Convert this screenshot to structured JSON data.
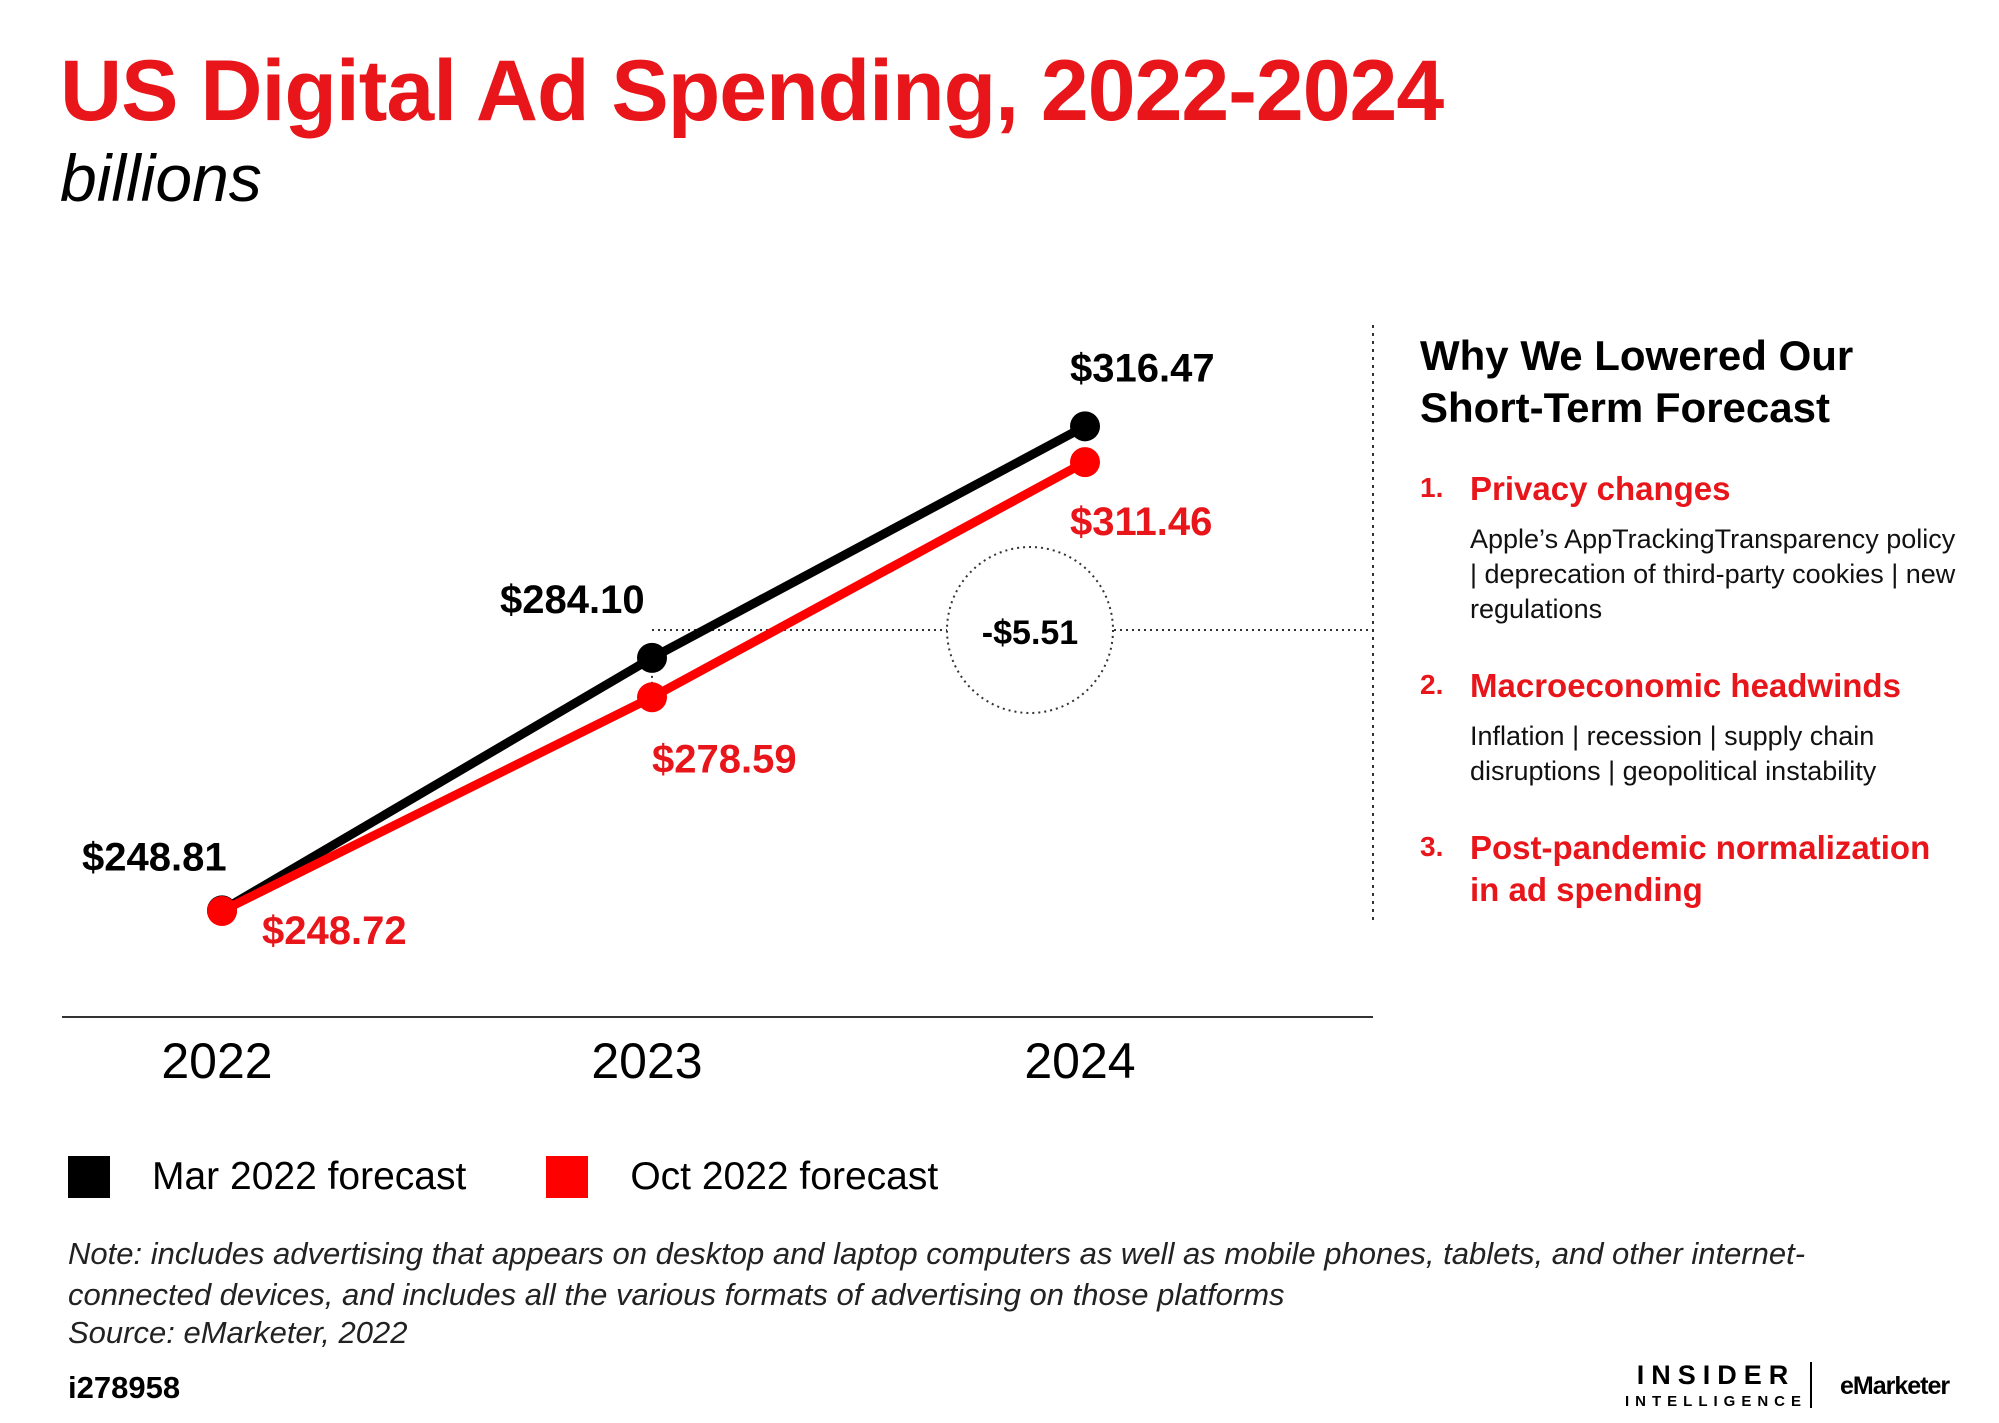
{
  "title": "US Digital Ad Spending, 2022-2024",
  "subtitle": "billions",
  "colors": {
    "accent": "#e8151a",
    "series_mar": "#000000",
    "series_oct": "#ff0000"
  },
  "chart_data": {
    "type": "line",
    "x": [
      "2022",
      "2023",
      "2024"
    ],
    "ylim": [
      230,
      330
    ],
    "grid": false,
    "legend_position": "bottom-left",
    "series": [
      {
        "name": "Mar 2022 forecast",
        "values": [
          248.81,
          284.1,
          316.47
        ],
        "labels": [
          "$248.81",
          "$284.10",
          "$316.47"
        ],
        "color": "#000000"
      },
      {
        "name": "Oct 2022 forecast",
        "values": [
          248.72,
          278.59,
          311.46
        ],
        "labels": [
          "$248.72",
          "$278.59",
          "$311.46"
        ],
        "color": "#ff0000"
      }
    ],
    "annotation": {
      "label": "-$5.51",
      "x": "2023",
      "value": -5.51
    }
  },
  "sidebar": {
    "heading_line1": "Why We Lowered Our",
    "heading_line2": "Short-Term Forecast",
    "reasons": [
      {
        "num": "1.",
        "title": "Privacy changes",
        "desc": "Apple’s AppTrackingTransparency policy | deprecation of third-party cookies | new regulations"
      },
      {
        "num": "2.",
        "title": "Macroeconomic headwinds",
        "desc": "Inflation | recession | supply chain disruptions | geopolitical instability"
      },
      {
        "num": "3.",
        "title": "Post-pandemic normalization in ad spending",
        "desc": ""
      }
    ]
  },
  "legend": {
    "items": [
      "Mar 2022 forecast",
      "Oct 2022 forecast"
    ]
  },
  "footer": {
    "note": "Note: includes advertising that appears on desktop and laptop computers as well as mobile phones, tablets, and other internet-connected devices, and includes all the various formats of advertising on those platforms",
    "source": "Source: eMarketer, 2022",
    "chart_id": "i278958",
    "logo_insider_top": "INSIDER",
    "logo_insider_bottom": "INTELLIGENCE",
    "logo_emarketer": "eMarketer"
  }
}
